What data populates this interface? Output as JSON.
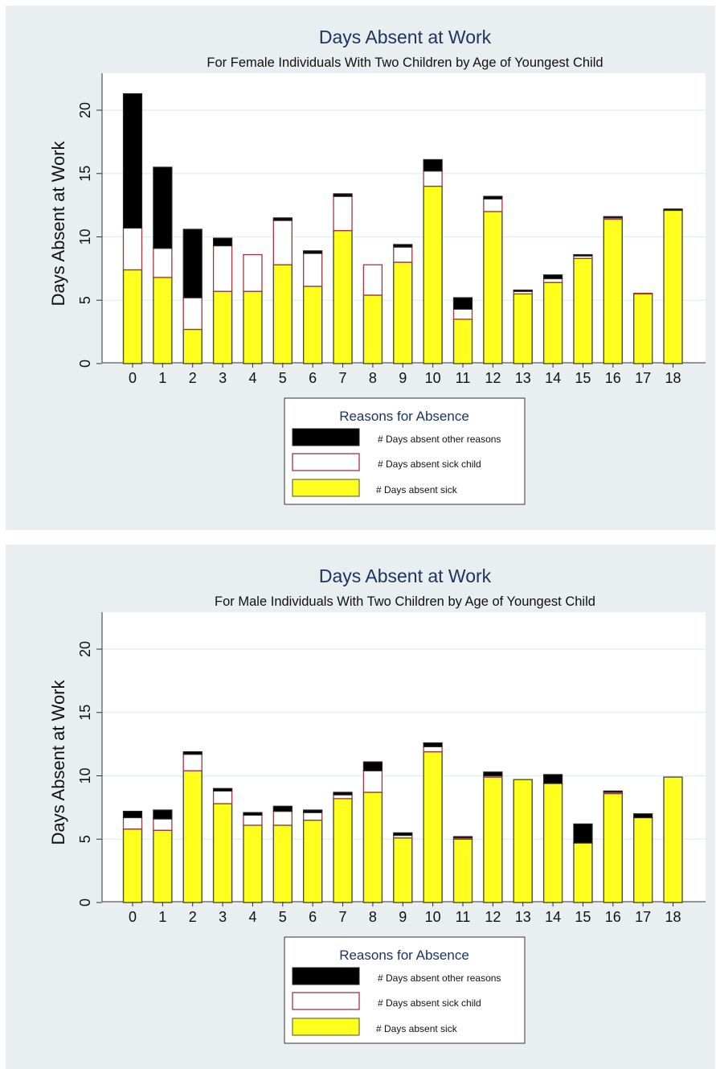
{
  "colors": {
    "panel_background": "#e9eef1",
    "plot_background": "#ffffff",
    "gridline": "#e3ebef",
    "title": "#1d3461",
    "other_reasons": "#000000",
    "sick_child_fill": "#ffffff",
    "sick_child_outline": "#a0363f",
    "sick_fill": "#ffff1e",
    "bar_outline": "#4a4f3a"
  },
  "chart_data": [
    {
      "type": "bar",
      "stacked": true,
      "title": "Days Absent at Work",
      "subtitle": "For Female Individuals With Two Children by Age of Youngest Child",
      "xlabel": "",
      "ylabel": "Days Absent at Work",
      "ylim": [
        0,
        22.5
      ],
      "yticks": [
        0,
        5,
        10,
        15,
        20
      ],
      "grid": true,
      "categories": [
        "0",
        "1",
        "2",
        "3",
        "4",
        "5",
        "6",
        "7",
        "8",
        "9",
        "10",
        "11",
        "12",
        "13",
        "14",
        "15",
        "16",
        "17",
        "18"
      ],
      "series": [
        {
          "name": "# Days absent sick",
          "values": [
            7.4,
            6.8,
            2.7,
            5.7,
            5.7,
            7.8,
            6.1,
            10.5,
            5.4,
            8.0,
            14.0,
            3.5,
            12.0,
            5.5,
            6.4,
            8.3,
            11.4,
            5.5,
            12.1
          ]
        },
        {
          "name": "# Days absent sick child",
          "values": [
            3.3,
            2.3,
            2.5,
            3.6,
            2.9,
            3.5,
            2.6,
            2.7,
            2.4,
            1.2,
            1.2,
            0.8,
            1.0,
            0.2,
            0.3,
            0.2,
            0.1,
            0.05,
            0.0
          ]
        },
        {
          "name": "# Days absent other reasons",
          "values": [
            10.6,
            6.4,
            5.4,
            0.6,
            0.0,
            0.2,
            0.2,
            0.2,
            0.0,
            0.2,
            0.9,
            0.9,
            0.2,
            0.1,
            0.3,
            0.1,
            0.1,
            0.0,
            0.1
          ]
        }
      ],
      "legend": {
        "title": "Reasons for Absence",
        "position": "bottom-center",
        "items": [
          "# Days absent other reasons",
          "# Days absent sick child",
          "# Days absent sick"
        ]
      }
    },
    {
      "type": "bar",
      "stacked": true,
      "title": "Days Absent at Work",
      "subtitle": "For Male Individuals With Two Children by Age of Youngest Child",
      "xlabel": "",
      "ylabel": "Days Absent at Work",
      "ylim": [
        0,
        21.3
      ],
      "yticks": [
        0,
        5,
        10,
        15,
        20
      ],
      "grid": true,
      "categories": [
        "0",
        "1",
        "2",
        "3",
        "4",
        "5",
        "6",
        "7",
        "8",
        "9",
        "10",
        "11",
        "12",
        "13",
        "14",
        "15",
        "16",
        "17",
        "18"
      ],
      "series": [
        {
          "name": "# Days absent sick",
          "values": [
            5.8,
            5.7,
            10.4,
            7.8,
            6.1,
            6.1,
            6.5,
            8.2,
            8.7,
            5.1,
            11.9,
            5.0,
            9.9,
            9.7,
            9.4,
            4.7,
            8.6,
            6.7,
            9.9
          ]
        },
        {
          "name": "# Days absent sick child",
          "values": [
            0.9,
            0.9,
            1.3,
            1.0,
            0.8,
            1.1,
            0.6,
            0.3,
            1.7,
            0.2,
            0.4,
            0.1,
            0.1,
            0.0,
            0.0,
            0.0,
            0.1,
            0.0,
            0.0
          ]
        },
        {
          "name": "# Days absent other reasons",
          "values": [
            0.5,
            0.7,
            0.2,
            0.2,
            0.2,
            0.4,
            0.2,
            0.2,
            0.7,
            0.2,
            0.3,
            0.1,
            0.3,
            0.0,
            0.7,
            1.5,
            0.1,
            0.3,
            0.0
          ]
        }
      ],
      "legend": {
        "title": "Reasons for Absence",
        "position": "bottom-center",
        "items": [
          "# Days absent other reasons",
          "# Days absent sick child",
          "# Days absent sick"
        ]
      }
    }
  ]
}
